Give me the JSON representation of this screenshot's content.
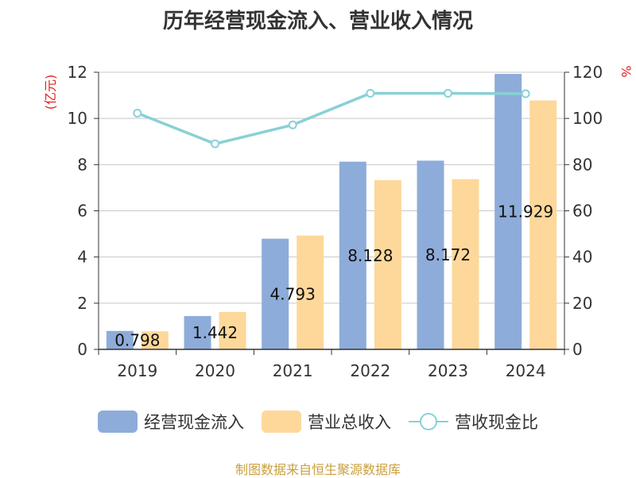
{
  "chart_data": {
    "type": "bar",
    "title": "历年经营现金流入、营业收入情况",
    "categories": [
      "2019",
      "2020",
      "2021",
      "2022",
      "2023",
      "2024"
    ],
    "y_left_unit": "(亿元)",
    "y_right_unit": "%",
    "y_left_ticks": [
      "0",
      "2",
      "4",
      "6",
      "8",
      "10",
      "12"
    ],
    "y_right_ticks": [
      "0",
      "20",
      "40",
      "60",
      "80",
      "100",
      "120"
    ],
    "ylim": [
      0,
      12
    ],
    "ylim_right": [
      0,
      120
    ],
    "grid": true,
    "legend_position": "bottom",
    "series": [
      {
        "name": "经营现金流入",
        "kind": "bar",
        "axis": "left",
        "color": "#8eacd9",
        "values": [
          0.798,
          1.442,
          4.793,
          8.128,
          8.172,
          11.929
        ],
        "labels": [
          "0.798",
          "1.442",
          "4.793",
          "8.128",
          "8.172",
          "11.929"
        ]
      },
      {
        "name": "营业总收入",
        "kind": "bar",
        "axis": "left",
        "color": "#fdd89a",
        "values": [
          0.78,
          1.62,
          4.93,
          7.33,
          7.37,
          10.78
        ]
      },
      {
        "name": "营收现金比",
        "kind": "line",
        "axis": "right",
        "color": "#88d1d6",
        "values": [
          102.3,
          89.0,
          97.2,
          110.9,
          110.9,
          110.7
        ]
      }
    ]
  },
  "source_note": "制图数据来自恒生聚源数据库"
}
